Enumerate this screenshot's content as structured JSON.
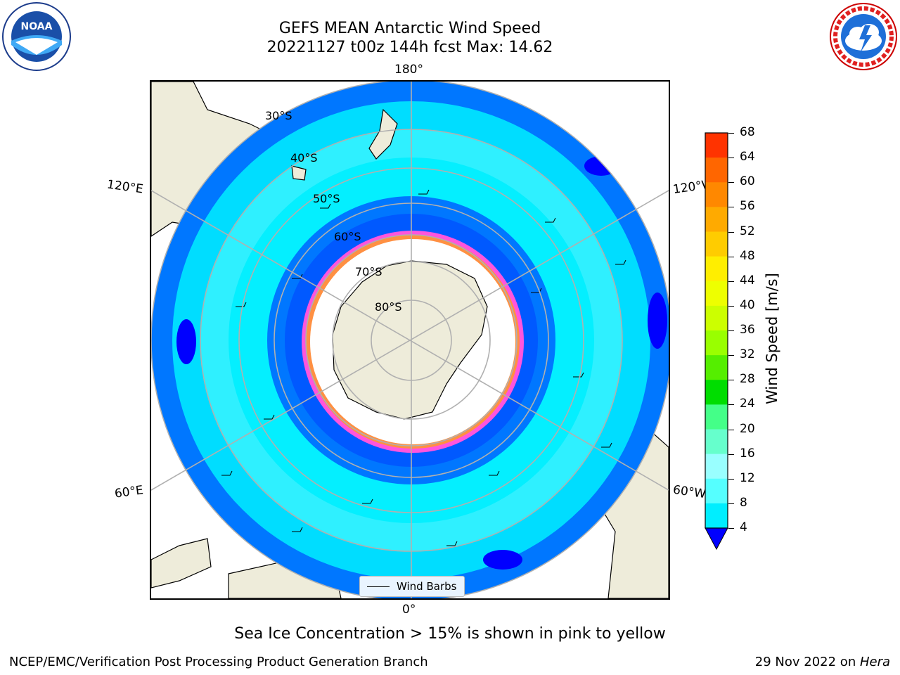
{
  "title": {
    "line1": "GEFS MEAN Antarctic Wind Speed",
    "line2": "20221127 t00z 144h fcst   Max: 14.62"
  },
  "caption": "Sea Ice Concentration > 15% is shown in pink to yellow",
  "footer": {
    "left": "NCEP/EMC/Verification Post Processing Product Generation Branch",
    "right_date": "29 Nov 2022 on ",
    "right_host": "Hera"
  },
  "logos": {
    "noaa": {
      "text": "NOAA",
      "icon": "noaa-logo"
    },
    "nws": {
      "icon": "nws-logo",
      "text": "NATIONAL WEATHER SERVICE"
    }
  },
  "map": {
    "projection": "south polar stereographic",
    "meridian_labels": {
      "top": "180°",
      "bottom": "0°",
      "left_upper": "120°E",
      "right_upper": "120°W",
      "left_lower": "60°E",
      "right_lower": "60°W"
    },
    "latitude_labels": [
      "30°S",
      "40°S",
      "50°S",
      "60°S",
      "70°S",
      "80°S"
    ],
    "legend": {
      "label": "Wind Barbs"
    }
  },
  "colorbar": {
    "title": "Wind Speed [m/s]",
    "ticks": [
      "68",
      "64",
      "60",
      "56",
      "52",
      "48",
      "44",
      "40",
      "36",
      "32",
      "28",
      "24",
      "20",
      "16",
      "12",
      "8",
      "4"
    ],
    "colors": [
      "#ff0000",
      "#ff3300",
      "#ff6600",
      "#ff8800",
      "#ffaa00",
      "#ffcc00",
      "#ffee00",
      "#eeff00",
      "#ccff00",
      "#99ff00",
      "#55ee00",
      "#00dd00",
      "#44ff88",
      "#66ffcc",
      "#99ffff",
      "#55ffff",
      "#00eeff",
      "#0077ff"
    ],
    "extend_color": "#0000ff"
  },
  "colors": {
    "ocean_dark": "#0000ff",
    "ocean_mid": "#0077ff",
    "ocean_light": "#00eeff",
    "ocean_lighter": "#55ffff",
    "land": "#eeecda",
    "ice_edge": "#ff55dd",
    "grid": "#b0b0b0"
  }
}
